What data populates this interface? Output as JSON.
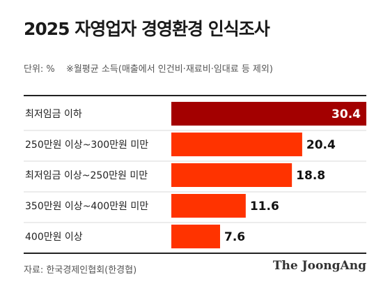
{
  "header": {
    "title": "2025 자영업자 경영환경 인식조사",
    "unit": "단위: %",
    "note": "※월평균 소득(매출에서 인건비·재료비·임대료 등 제외)"
  },
  "footer": {
    "source": "자료: 한국경제인협회(한경협)",
    "brand": "The JoongAng"
  },
  "colors": {
    "highlight_bar": "#a30000",
    "bar": "#ff3300",
    "highlight_label": "#ffffff",
    "label": "#111111"
  },
  "chart_data": {
    "type": "bar",
    "orientation": "horizontal",
    "categories": [
      "최저임금 이하",
      "250만원 이상~300만원 미만",
      "최저임금 이상~250만원 미만",
      "350만원 이상~400만원 미만",
      "400만원 이상"
    ],
    "values": [
      30.4,
      20.4,
      18.8,
      11.6,
      7.6
    ],
    "value_labels": [
      "30.4",
      "20.4",
      "18.8",
      "11.6",
      "7.6"
    ],
    "highlight_index": 0,
    "xlim": [
      0,
      30.4
    ],
    "grid": false
  }
}
